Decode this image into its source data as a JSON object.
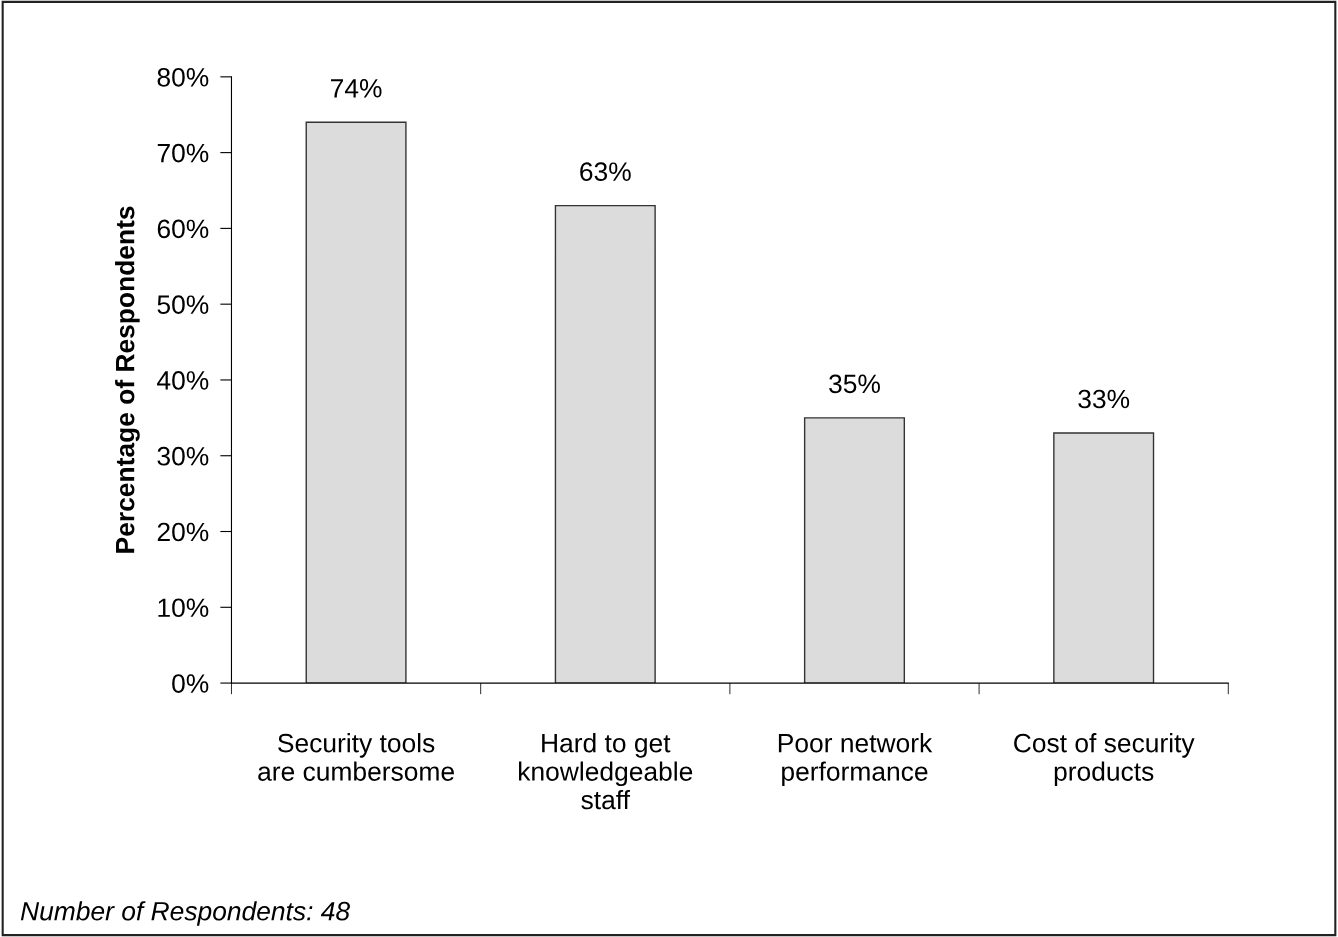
{
  "chart_data": {
    "type": "bar",
    "ylabel": "Percentage of Respondents",
    "categories": [
      "Security tools\nare cumbersome",
      "Hard to get\nknowledgeable\nstaff",
      "Poor network\nperformance",
      "Cost of security\nproducts"
    ],
    "values": [
      74,
      63,
      35,
      33
    ],
    "color": "#dcdcdc",
    "ylim": [
      0,
      80
    ],
    "yticks": [
      {
        "value": 0,
        "label": "0%"
      },
      {
        "value": 10,
        "label": "10%"
      },
      {
        "value": 20,
        "label": "20%"
      },
      {
        "value": 30,
        "label": "30%"
      },
      {
        "value": 40,
        "label": "40%"
      },
      {
        "value": 50,
        "label": "50%"
      },
      {
        "value": 60,
        "label": "60%"
      },
      {
        "value": 70,
        "label": "70%"
      },
      {
        "value": 80,
        "label": "80%"
      }
    ],
    "value_labels": [
      "74%",
      "63%",
      "35%",
      "33%"
    ],
    "grid": false,
    "legend": false,
    "annotations": [
      "Number of Respondents: 48"
    ]
  }
}
